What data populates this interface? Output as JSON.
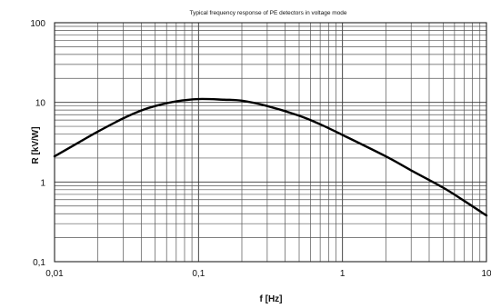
{
  "chart_data": {
    "type": "line",
    "title": "Typical frequency response of PE detectors in voltage mode",
    "xlabel": "f [Hz]",
    "ylabel": "R [kV/W]",
    "xscale": "log",
    "yscale": "log",
    "xlim": [
      0.01,
      10
    ],
    "ylim": [
      0.1,
      100
    ],
    "grid": true,
    "legend": "none",
    "x_tick_labels": [
      "0,01",
      "0,1",
      "1",
      "10"
    ],
    "y_tick_labels": [
      "0,1",
      "1",
      "10",
      "100"
    ],
    "series": [
      {
        "x": [
          0.01,
          0.015,
          0.02,
          0.03,
          0.04,
          0.05,
          0.07,
          0.1,
          0.15,
          0.2,
          0.3,
          0.5,
          0.7,
          1,
          2,
          3,
          5,
          7,
          10
        ],
        "y": [
          2.1,
          3.2,
          4.3,
          6.3,
          7.9,
          9.0,
          10.3,
          11.0,
          10.8,
          10.5,
          9.0,
          6.8,
          5.3,
          3.9,
          2.1,
          1.4,
          0.85,
          0.58,
          0.38
        ]
      }
    ],
    "colors": {
      "curve": "#000000",
      "grid": "#333333",
      "background": "#ffffff"
    }
  }
}
